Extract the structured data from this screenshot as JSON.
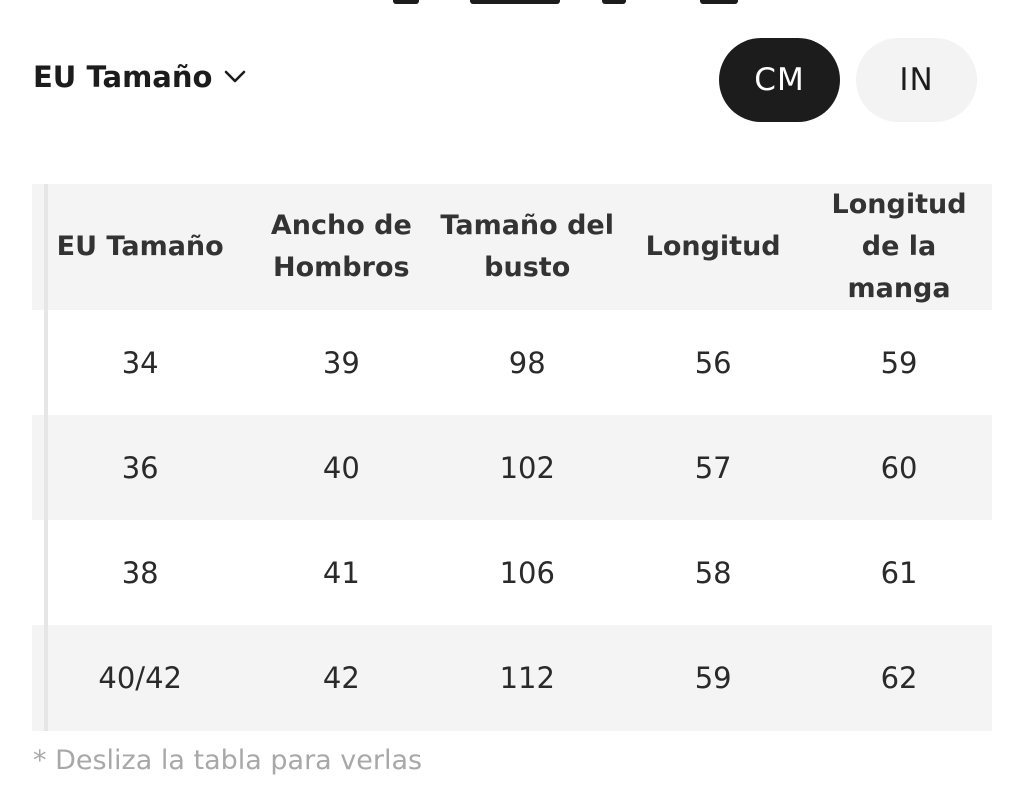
{
  "size_selector": {
    "label": "EU Tamaño",
    "icon": "chevron-down-icon"
  },
  "units": {
    "cm": "CM",
    "in": "IN",
    "selected": "CM"
  },
  "table": {
    "headers": [
      "EU Tamaño",
      "Ancho de Hombros",
      "Tamaño del busto",
      "Longitud",
      "Longitud de la manga"
    ],
    "rows": [
      [
        "34",
        "39",
        "98",
        "56",
        "59"
      ],
      [
        "36",
        "40",
        "102",
        "57",
        "60"
      ],
      [
        "38",
        "41",
        "106",
        "58",
        "61"
      ],
      [
        "40/42",
        "42",
        "112",
        "59",
        "62"
      ]
    ]
  },
  "note": "* Desliza la tabla para verlas",
  "colors": {
    "selected_bg": "#1c1c1c",
    "unselected_bg": "#f3f3f3",
    "stripe": "#f4f4f4"
  }
}
